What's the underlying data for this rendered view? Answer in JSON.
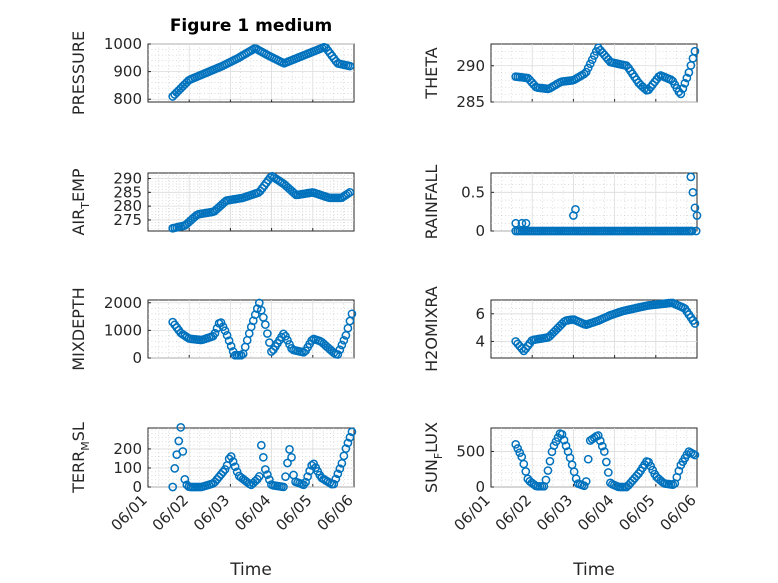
{
  "figure": {
    "title": "Figure 1 medium",
    "xlabel": "Time",
    "marker_color": "#0072BD",
    "x_ticks": [
      "06/01",
      "06/02",
      "06/03",
      "06/04",
      "06/05",
      "06/06"
    ]
  },
  "chart_data": [
    {
      "type": "scatter",
      "id": "pressure",
      "title": "Figure 1 medium",
      "ylabel": "PRESSURE",
      "xlabel": "",
      "xlim": [
        0,
        5
      ],
      "ylim": [
        790,
        1000
      ],
      "yticks": [
        800,
        900,
        1000
      ],
      "grid": true,
      "keys": [
        [
          0.6,
          810
        ],
        [
          1.0,
          870
        ],
        [
          1.4,
          895
        ],
        [
          1.8,
          920
        ],
        [
          2.2,
          950
        ],
        [
          2.6,
          985
        ],
        [
          2.9,
          960
        ],
        [
          3.3,
          930
        ],
        [
          3.8,
          960
        ],
        [
          4.3,
          990
        ],
        [
          4.6,
          930
        ],
        [
          4.9,
          920
        ]
      ]
    },
    {
      "type": "scatter",
      "id": "theta",
      "ylabel": "THETA",
      "xlabel": "",
      "xlim": [
        0,
        5
      ],
      "ylim": [
        285,
        293
      ],
      "yticks": [
        285,
        290
      ],
      "grid": true,
      "keys": [
        [
          0.6,
          288.5
        ],
        [
          0.9,
          288.3
        ],
        [
          1.1,
          287
        ],
        [
          1.4,
          286.8
        ],
        [
          1.7,
          287.8
        ],
        [
          2.0,
          288
        ],
        [
          2.3,
          289
        ],
        [
          2.6,
          292.5
        ],
        [
          2.9,
          290.5
        ],
        [
          3.3,
          290
        ],
        [
          3.6,
          287.5
        ],
        [
          3.8,
          286.5
        ],
        [
          4.1,
          288.7
        ],
        [
          4.4,
          288
        ],
        [
          4.6,
          286
        ],
        [
          4.8,
          289
        ],
        [
          4.95,
          292
        ]
      ]
    },
    {
      "type": "scatter",
      "id": "air_temp",
      "ylabel": "AIR_TEMP",
      "ylabel_main": "AIR",
      "ylabel_sub": "T",
      "ylabel_rest": "EMP",
      "xlabel": "",
      "xlim": [
        0,
        5
      ],
      "ylim": [
        271,
        292
      ],
      "yticks": [
        275,
        280,
        285,
        290
      ],
      "grid": true,
      "keys": [
        [
          0.6,
          272
        ],
        [
          0.9,
          273
        ],
        [
          1.2,
          277
        ],
        [
          1.6,
          278
        ],
        [
          1.9,
          282
        ],
        [
          2.3,
          283
        ],
        [
          2.7,
          285
        ],
        [
          3.0,
          291
        ],
        [
          3.3,
          288
        ],
        [
          3.6,
          284
        ],
        [
          4.0,
          285
        ],
        [
          4.4,
          283
        ],
        [
          4.7,
          283
        ],
        [
          4.9,
          285
        ]
      ]
    },
    {
      "type": "scatter",
      "id": "rainfall",
      "ylabel": "RAINFALL",
      "xlabel": "",
      "xlim": [
        0,
        5
      ],
      "ylim": [
        0,
        0.75
      ],
      "yticks": [
        0,
        0.5
      ],
      "ytick_labels": [
        "0",
        "0.5"
      ],
      "grid": true,
      "baseline_from": 0.6,
      "baseline_to": 4.85,
      "spikes": [
        [
          0.6,
          0.1
        ],
        [
          0.75,
          0.1
        ],
        [
          0.85,
          0.1
        ],
        [
          2.0,
          0.2
        ],
        [
          2.05,
          0.28
        ],
        [
          4.85,
          0.7
        ],
        [
          4.9,
          0.5
        ],
        [
          4.95,
          0.3
        ],
        [
          5.0,
          0.2
        ],
        [
          4.88,
          0.0
        ],
        [
          4.98,
          0.0
        ]
      ]
    },
    {
      "type": "scatter",
      "id": "mixdepth",
      "ylabel": "MIXDEPTH",
      "xlabel": "",
      "xlim": [
        0,
        5
      ],
      "ylim": [
        0,
        2100
      ],
      "yticks": [
        0,
        1000,
        2000
      ],
      "grid": true,
      "keys": [
        [
          0.6,
          1300
        ],
        [
          0.8,
          900
        ],
        [
          1.0,
          700
        ],
        [
          1.3,
          650
        ],
        [
          1.6,
          800
        ],
        [
          1.75,
          1350
        ],
        [
          1.9,
          900
        ],
        [
          2.1,
          100
        ],
        [
          2.3,
          100
        ],
        [
          2.5,
          1100
        ],
        [
          2.7,
          2000
        ],
        [
          2.85,
          1200
        ],
        [
          3.0,
          200
        ],
        [
          3.3,
          900
        ],
        [
          3.5,
          300
        ],
        [
          3.8,
          200
        ],
        [
          4.0,
          700
        ],
        [
          4.2,
          600
        ],
        [
          4.5,
          200
        ],
        [
          4.6,
          100
        ],
        [
          4.8,
          800
        ],
        [
          4.95,
          1600
        ]
      ]
    },
    {
      "type": "scatter",
      "id": "h2omixra",
      "ylabel": "H2OMIXRA",
      "xlabel": "",
      "xlim": [
        0,
        5
      ],
      "ylim": [
        2.8,
        7
      ],
      "yticks": [
        4,
        6
      ],
      "grid": true,
      "keys": [
        [
          0.6,
          4.0
        ],
        [
          0.8,
          3.3
        ],
        [
          1.0,
          4.1
        ],
        [
          1.4,
          4.3
        ],
        [
          1.8,
          5.5
        ],
        [
          2.0,
          5.6
        ],
        [
          2.3,
          5.2
        ],
        [
          2.6,
          5.5
        ],
        [
          2.9,
          5.9
        ],
        [
          3.2,
          6.2
        ],
        [
          3.5,
          6.4
        ],
        [
          3.8,
          6.6
        ],
        [
          4.1,
          6.7
        ],
        [
          4.4,
          6.8
        ],
        [
          4.7,
          6.4
        ],
        [
          4.95,
          5.3
        ]
      ]
    },
    {
      "type": "scatter",
      "id": "terr_msl",
      "ylabel": "TERR_MSL",
      "ylabel_main": "TERR",
      "ylabel_sub": "M",
      "ylabel_rest": "SL",
      "xlabel": "Time",
      "xlim": [
        0,
        5
      ],
      "ylim": [
        0,
        310
      ],
      "yticks": [
        0,
        100,
        200
      ],
      "grid": true,
      "keys": [
        [
          0.6,
          0
        ],
        [
          0.65,
          100
        ],
        [
          0.8,
          320
        ],
        [
          0.9,
          20
        ],
        [
          1.0,
          0
        ],
        [
          1.3,
          0
        ],
        [
          1.6,
          20
        ],
        [
          1.9,
          100
        ],
        [
          2.0,
          170
        ],
        [
          2.2,
          60
        ],
        [
          2.5,
          10
        ],
        [
          2.7,
          50
        ],
        [
          2.75,
          220
        ],
        [
          2.85,
          90
        ],
        [
          3.0,
          10
        ],
        [
          3.3,
          0
        ],
        [
          3.45,
          220
        ],
        [
          3.55,
          30
        ],
        [
          3.8,
          10
        ],
        [
          4.0,
          130
        ],
        [
          4.2,
          50
        ],
        [
          4.5,
          10
        ],
        [
          4.7,
          120
        ],
        [
          4.8,
          200
        ],
        [
          4.95,
          290
        ]
      ]
    },
    {
      "type": "scatter",
      "id": "sun_flux",
      "ylabel": "SUN_FLUX",
      "ylabel_main": "SUN",
      "ylabel_sub": "F",
      "ylabel_rest": "LUX",
      "xlabel": "Time",
      "xlim": [
        0,
        5
      ],
      "ylim": [
        0,
        830
      ],
      "yticks": [
        0,
        500
      ],
      "grid": true,
      "keys": [
        [
          0.6,
          600
        ],
        [
          0.75,
          420
        ],
        [
          0.9,
          100
        ],
        [
          1.1,
          10
        ],
        [
          1.3,
          10
        ],
        [
          1.5,
          550
        ],
        [
          1.7,
          780
        ],
        [
          1.9,
          450
        ],
        [
          2.1,
          50
        ],
        [
          2.3,
          10
        ],
        [
          2.4,
          650
        ],
        [
          2.6,
          730
        ],
        [
          2.75,
          500
        ],
        [
          2.9,
          50
        ],
        [
          3.1,
          0
        ],
        [
          3.3,
          0
        ],
        [
          3.6,
          200
        ],
        [
          3.8,
          380
        ],
        [
          4.0,
          150
        ],
        [
          4.2,
          50
        ],
        [
          4.45,
          30
        ],
        [
          4.6,
          300
        ],
        [
          4.8,
          500
        ],
        [
          4.95,
          450
        ]
      ]
    }
  ]
}
